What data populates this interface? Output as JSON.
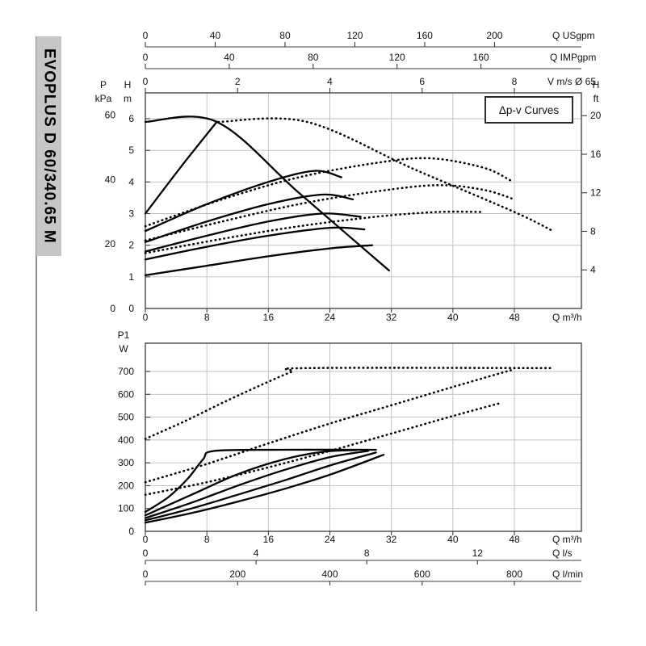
{
  "sidebar": {
    "model": "EVOPLUS D 60/340.65 M",
    "bg": "#c6c6c6"
  },
  "legend": {
    "label": "Δp-v Curves"
  },
  "chart_data": [
    {
      "id": "head-curves",
      "type": "line",
      "title": "Δp-v Curves",
      "xlim": [
        0,
        56.7
      ],
      "ylim": [
        0,
        6.8
      ],
      "x_axis": {
        "label": "Q m³/h",
        "ticks": [
          0,
          8,
          16,
          24,
          32,
          40,
          48
        ]
      },
      "x_axes_top": [
        {
          "label": "Q USgpm",
          "ticks": [
            0,
            40,
            80,
            120,
            160,
            200
          ],
          "to_m3h": 0.2271
        },
        {
          "label": "Q IMPgpm",
          "ticks": [
            0,
            40,
            80,
            120,
            160
          ],
          "to_m3h": 0.2728
        },
        {
          "label": "V m/s Ø 65",
          "ticks": [
            0,
            2,
            4,
            6,
            8
          ],
          "to_m3h": 6.0
        }
      ],
      "y_axis": {
        "label_top": "H",
        "label_unit": "m",
        "ticks": [
          0,
          1,
          2,
          3,
          4,
          5,
          6
        ]
      },
      "y_axis_kpa": {
        "label_top": "P",
        "label_unit": "kPa",
        "ticks": [
          0,
          20,
          40,
          60
        ],
        "to_m": 0.10194
      },
      "y_axis_right": {
        "label_top": "H",
        "label_unit": "ft",
        "ticks": [
          4,
          8,
          12,
          16,
          20
        ],
        "to_m": 0.3048
      },
      "grid": true,
      "series": [
        {
          "name": "max-speed-envelope",
          "style": "solid",
          "points": [
            [
              0,
              5.9
            ],
            [
              9.3,
              5.9
            ],
            [
              20,
              3.65
            ],
            [
              31.7,
              1.2
            ]
          ]
        },
        {
          "name": "dpv-max-rise",
          "style": "solid",
          "points": [
            [
              0,
              3.0
            ],
            [
              4.7,
              4.5
            ],
            [
              9.3,
              5.9
            ]
          ]
        },
        {
          "name": "speed-curve-5",
          "style": "solid",
          "points": [
            [
              0,
              2.45
            ],
            [
              8,
              3.3
            ],
            [
              16,
              4.0
            ],
            [
              22,
              4.35
            ],
            [
              25.5,
              4.15
            ]
          ]
        },
        {
          "name": "speed-curve-4",
          "style": "solid",
          "points": [
            [
              0,
              2.1
            ],
            [
              8,
              2.75
            ],
            [
              16,
              3.3
            ],
            [
              23,
              3.6
            ],
            [
              27,
              3.45
            ]
          ]
        },
        {
          "name": "speed-curve-3",
          "style": "solid",
          "points": [
            [
              0,
              1.8
            ],
            [
              8,
              2.3
            ],
            [
              16,
              2.75
            ],
            [
              23,
              3.0
            ],
            [
              28,
              2.9
            ]
          ]
        },
        {
          "name": "speed-curve-2",
          "style": "solid",
          "points": [
            [
              0,
              1.55
            ],
            [
              8,
              1.95
            ],
            [
              16,
              2.3
            ],
            [
              24,
              2.55
            ],
            [
              28.5,
              2.5
            ]
          ]
        },
        {
          "name": "speed-curve-1",
          "style": "solid",
          "points": [
            [
              0,
              1.05
            ],
            [
              8,
              1.35
            ],
            [
              16,
              1.65
            ],
            [
              24,
              1.9
            ],
            [
              29.5,
              2.0
            ]
          ]
        },
        {
          "name": "dpv-envelope-dotted",
          "style": "dotted",
          "points": [
            [
              9.5,
              5.9
            ],
            [
              21,
              5.9
            ],
            [
              35,
              4.4
            ],
            [
              48,
              3.05
            ],
            [
              53,
              2.45
            ]
          ]
        },
        {
          "name": "dpv-curve-d3",
          "style": "dotted",
          "points": [
            [
              0,
              2.6
            ],
            [
              10,
              3.45
            ],
            [
              20,
              4.15
            ],
            [
              30,
              4.6
            ],
            [
              37,
              4.75
            ],
            [
              44,
              4.45
            ],
            [
              47.5,
              4.05
            ]
          ]
        },
        {
          "name": "dpv-curve-d2",
          "style": "dotted",
          "points": [
            [
              0,
              2.15
            ],
            [
              10,
              2.75
            ],
            [
              20,
              3.3
            ],
            [
              30,
              3.7
            ],
            [
              38,
              3.9
            ],
            [
              44,
              3.75
            ],
            [
              48,
              3.45
            ]
          ]
        },
        {
          "name": "dpv-curve-d1",
          "style": "dotted",
          "points": [
            [
              0,
              1.75
            ],
            [
              10,
              2.2
            ],
            [
              20,
              2.6
            ],
            [
              30,
              2.9
            ],
            [
              38,
              3.05
            ],
            [
              44,
              3.05
            ]
          ]
        }
      ]
    },
    {
      "id": "power-curves",
      "type": "line",
      "xlim": [
        0,
        56.7
      ],
      "ylim": [
        0,
        824
      ],
      "y_axis": {
        "label_top": "P1",
        "label_unit": "W",
        "ticks": [
          0,
          100,
          200,
          300,
          400,
          500,
          600,
          700
        ]
      },
      "x_axis": {
        "label": "Q m³/h",
        "ticks": [
          0,
          8,
          16,
          24,
          32,
          40,
          48
        ]
      },
      "x_axes_below": [
        {
          "label": "Q l/s",
          "ticks": [
            0,
            4,
            8,
            12
          ],
          "to_m3h": 3.6
        },
        {
          "label": "Q l/min",
          "ticks": [
            0,
            200,
            400,
            600,
            800
          ],
          "to_m3h": 0.06
        }
      ],
      "grid": true,
      "series": [
        {
          "name": "p1-max",
          "style": "solid",
          "points": [
            [
              0,
              85
            ],
            [
              3,
              150
            ],
            [
              5.5,
              230
            ],
            [
              7.5,
              315
            ],
            [
              9,
              352
            ],
            [
              18,
              357
            ],
            [
              30,
              357
            ]
          ]
        },
        {
          "name": "p1-s4",
          "style": "solid",
          "points": [
            [
              0,
              70
            ],
            [
              6,
              160
            ],
            [
              12,
              250
            ],
            [
              18,
              315
            ],
            [
              23,
              348
            ],
            [
              27.5,
              356
            ]
          ]
        },
        {
          "name": "p1-s3",
          "style": "solid",
          "points": [
            [
              0,
              58
            ],
            [
              6,
              125
            ],
            [
              12,
              200
            ],
            [
              18,
              268
            ],
            [
              24,
              325
            ],
            [
              29,
              352
            ]
          ]
        },
        {
          "name": "p1-s2",
          "style": "solid",
          "points": [
            [
              0,
              48
            ],
            [
              6,
              100
            ],
            [
              12,
              160
            ],
            [
              18,
              222
            ],
            [
              24,
              288
            ],
            [
              30,
              345
            ]
          ]
        },
        {
          "name": "p1-s1",
          "style": "solid",
          "points": [
            [
              0,
              38
            ],
            [
              6,
              80
            ],
            [
              12,
              130
            ],
            [
              18,
              185
            ],
            [
              24,
              248
            ],
            [
              31,
              335
            ]
          ]
        },
        {
          "name": "p1-d3",
          "style": "dotted",
          "points": [
            [
              0,
              405
            ],
            [
              5,
              480
            ],
            [
              10,
              562
            ],
            [
              15,
              640
            ],
            [
              19,
              698
            ],
            [
              21,
              715
            ],
            [
              53,
              715
            ]
          ]
        },
        {
          "name": "p1-d2",
          "style": "dotted",
          "points": [
            [
              0,
              215
            ],
            [
              8,
              295
            ],
            [
              16,
              385
            ],
            [
              24,
              472
            ],
            [
              32,
              552
            ],
            [
              40,
              632
            ],
            [
              48,
              710
            ]
          ]
        },
        {
          "name": "p1-d1",
          "style": "dotted",
          "points": [
            [
              0,
              160
            ],
            [
              8,
              215
            ],
            [
              16,
              280
            ],
            [
              24,
              352
            ],
            [
              32,
              428
            ],
            [
              40,
              505
            ],
            [
              46,
              560
            ]
          ]
        }
      ]
    }
  ]
}
